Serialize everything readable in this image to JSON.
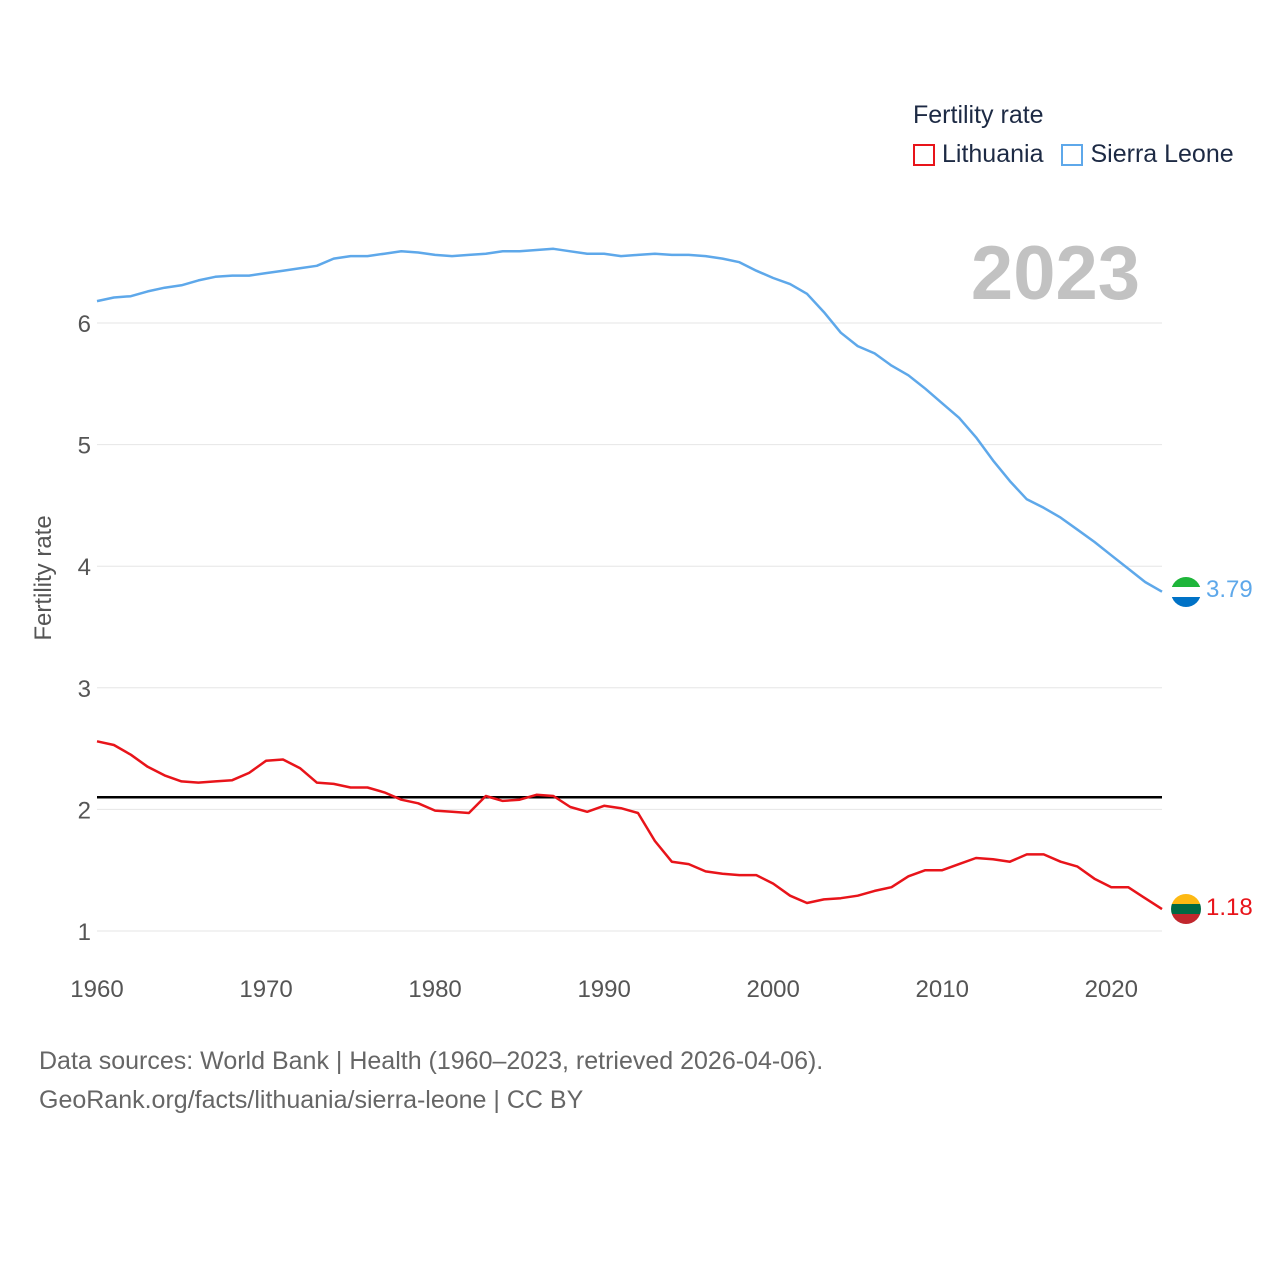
{
  "chart_data": {
    "type": "line",
    "title": "Fertility rate",
    "ylabel": "Fertility rate",
    "xlabel": "",
    "year_label": "2023",
    "xlim": [
      1960,
      2023
    ],
    "ylim": [
      1,
      6.6
    ],
    "x_ticks": [
      1960,
      1970,
      1980,
      1990,
      2000,
      2010,
      2020
    ],
    "y_ticks": [
      1,
      2,
      3,
      4,
      5,
      6
    ],
    "reference_line": 2.1,
    "x": [
      1960,
      1961,
      1962,
      1963,
      1964,
      1965,
      1966,
      1967,
      1968,
      1969,
      1970,
      1971,
      1972,
      1973,
      1974,
      1975,
      1976,
      1977,
      1978,
      1979,
      1980,
      1981,
      1982,
      1983,
      1984,
      1985,
      1986,
      1987,
      1988,
      1989,
      1990,
      1991,
      1992,
      1993,
      1994,
      1995,
      1996,
      1997,
      1998,
      1999,
      2000,
      2001,
      2002,
      2003,
      2004,
      2005,
      2006,
      2007,
      2008,
      2009,
      2010,
      2011,
      2012,
      2013,
      2014,
      2015,
      2016,
      2017,
      2018,
      2019,
      2020,
      2021,
      2022,
      2023
    ],
    "series": [
      {
        "name": "Lithuania",
        "color": "#e8141a",
        "end_value_label": "1.18",
        "flag": "lithuania-flag",
        "values": [
          2.56,
          2.53,
          2.45,
          2.35,
          2.28,
          2.23,
          2.22,
          2.23,
          2.24,
          2.3,
          2.4,
          2.41,
          2.34,
          2.22,
          2.21,
          2.18,
          2.18,
          2.14,
          2.08,
          2.05,
          1.99,
          1.98,
          1.97,
          2.11,
          2.07,
          2.08,
          2.12,
          2.11,
          2.02,
          1.98,
          2.03,
          2.01,
          1.97,
          1.74,
          1.57,
          1.55,
          1.49,
          1.47,
          1.46,
          1.46,
          1.39,
          1.29,
          1.23,
          1.26,
          1.27,
          1.29,
          1.33,
          1.36,
          1.45,
          1.5,
          1.5,
          1.55,
          1.6,
          1.59,
          1.57,
          1.63,
          1.63,
          1.57,
          1.53,
          1.43,
          1.36,
          1.36,
          1.27,
          1.18
        ]
      },
      {
        "name": "Sierra Leone",
        "color": "#5ea8ea",
        "end_value_label": "3.79",
        "flag": "sierra-leone-flag",
        "values": [
          6.18,
          6.21,
          6.22,
          6.26,
          6.29,
          6.31,
          6.35,
          6.38,
          6.39,
          6.39,
          6.41,
          6.43,
          6.45,
          6.47,
          6.53,
          6.55,
          6.55,
          6.57,
          6.59,
          6.58,
          6.56,
          6.55,
          6.56,
          6.57,
          6.59,
          6.59,
          6.6,
          6.61,
          6.59,
          6.57,
          6.57,
          6.55,
          6.56,
          6.57,
          6.56,
          6.56,
          6.55,
          6.53,
          6.5,
          6.43,
          6.37,
          6.32,
          6.24,
          6.09,
          5.92,
          5.81,
          5.75,
          5.65,
          5.57,
          5.46,
          5.34,
          5.22,
          5.06,
          4.87,
          4.7,
          4.55,
          4.48,
          4.4,
          4.3,
          4.2,
          4.09,
          3.98,
          3.87,
          3.79
        ]
      }
    ]
  },
  "legend": {
    "title": "Fertility rate",
    "items": [
      "Lithuania",
      "Sierra Leone"
    ]
  },
  "footer": {
    "line1": "Data sources: World Bank | Health (1960–2023, retrieved 2026-04-06).",
    "line2": "GeoRank.org/facts/lithuania/sierra-leone | CC BY"
  }
}
